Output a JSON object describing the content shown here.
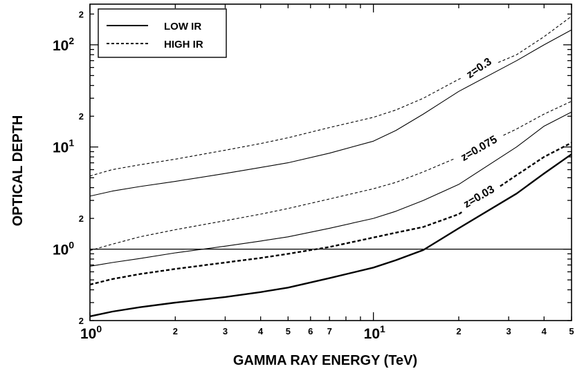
{
  "chart_data": {
    "type": "line",
    "xlabel": "GAMMA RAY ENERGY (TeV)",
    "ylabel": "OPTICAL DEPTH",
    "xscale": "log",
    "yscale": "log",
    "xlim": [
      1,
      50
    ],
    "ylim": [
      0.2,
      250
    ],
    "x_major_ticks": [
      {
        "value": 1,
        "base": "10",
        "exp": "0"
      },
      {
        "value": 10,
        "base": "10",
        "exp": "1"
      }
    ],
    "x_minor_ticks": [
      {
        "value": 2,
        "label": "2"
      },
      {
        "value": 3,
        "label": "3"
      },
      {
        "value": 4,
        "label": "4"
      },
      {
        "value": 5,
        "label": "5"
      },
      {
        "value": 6,
        "label": "6"
      },
      {
        "value": 7,
        "label": "7"
      },
      {
        "value": 20,
        "label": "2"
      },
      {
        "value": 30,
        "label": "3"
      },
      {
        "value": 40,
        "label": "4"
      },
      {
        "value": 50,
        "label": "5"
      }
    ],
    "y_major_ticks": [
      {
        "value": 1,
        "base": "10",
        "exp": "0"
      },
      {
        "value": 10,
        "base": "10",
        "exp": "1"
      },
      {
        "value": 100,
        "base": "10",
        "exp": "2"
      }
    ],
    "y_minor_ticks": [
      {
        "value": 0.2,
        "label": "2"
      },
      {
        "value": 2,
        "label": "2"
      },
      {
        "value": 20,
        "label": "2"
      },
      {
        "value": 200,
        "label": "2"
      }
    ],
    "reference_line": {
      "y": 1
    },
    "legend": {
      "placement": "top-left",
      "entries": [
        {
          "label": "LOW IR",
          "style": "solid"
        },
        {
          "label": "HIGH IR",
          "style": "dashed"
        }
      ]
    },
    "series": [
      {
        "group": "z=0.3",
        "style": "dashed",
        "weight": "thin",
        "x": [
          1,
          1.2,
          1.5,
          2,
          3,
          4,
          5,
          7,
          10,
          12,
          15,
          20,
          32,
          40,
          50
        ],
        "y": [
          5.2,
          6.0,
          6.7,
          7.6,
          9.3,
          10.8,
          12.3,
          15.5,
          19.5,
          23,
          30,
          46,
          80,
          120,
          190
        ]
      },
      {
        "group": "z=0.3",
        "style": "solid",
        "weight": "thin",
        "x": [
          1,
          1.2,
          1.5,
          2,
          3,
          4,
          5,
          7,
          10,
          12,
          15,
          20,
          32,
          40,
          50
        ],
        "y": [
          3.3,
          3.7,
          4.1,
          4.6,
          5.5,
          6.3,
          7.0,
          8.7,
          11.4,
          14.5,
          21,
          35,
          70,
          100,
          140
        ]
      },
      {
        "group": "z=0.075",
        "style": "dashed",
        "weight": "thin",
        "x": [
          1,
          1.2,
          1.5,
          2,
          3,
          4,
          5,
          7,
          10,
          12,
          15,
          20,
          32,
          40,
          50
        ],
        "y": [
          0.97,
          1.12,
          1.32,
          1.55,
          1.9,
          2.2,
          2.5,
          3.1,
          3.9,
          4.5,
          5.7,
          8,
          15,
          21,
          28
        ]
      },
      {
        "group": "z=0.075",
        "style": "solid",
        "weight": "thin",
        "x": [
          1,
          1.2,
          1.5,
          2,
          3,
          4,
          5,
          7,
          10,
          12,
          15,
          20,
          32,
          40,
          50
        ],
        "y": [
          0.68,
          0.74,
          0.81,
          0.92,
          1.07,
          1.2,
          1.32,
          1.6,
          2.0,
          2.35,
          3.0,
          4.3,
          10,
          16,
          22
        ]
      },
      {
        "group": "z=0.03",
        "style": "dashed",
        "weight": "thick",
        "x": [
          1,
          1.2,
          1.5,
          2,
          3,
          4,
          5,
          7,
          10,
          12,
          15,
          20,
          32,
          40,
          50
        ],
        "y": [
          0.45,
          0.51,
          0.57,
          0.64,
          0.74,
          0.82,
          0.9,
          1.05,
          1.3,
          1.45,
          1.65,
          2.2,
          5.3,
          8,
          11
        ]
      },
      {
        "group": "z=0.03",
        "style": "solid",
        "weight": "thick",
        "x": [
          1,
          1.2,
          1.5,
          2,
          3,
          4,
          5,
          7,
          10,
          12,
          15,
          20,
          32,
          40,
          50
        ],
        "y": [
          0.22,
          0.245,
          0.27,
          0.3,
          0.34,
          0.38,
          0.42,
          0.52,
          0.66,
          0.78,
          0.98,
          1.6,
          3.5,
          5.5,
          8.5
        ]
      }
    ],
    "curve_labels": [
      {
        "text": "z=0.3",
        "x": 23.5,
        "y": 60,
        "angle": -34
      },
      {
        "text": "z=0.075",
        "x": 23.5,
        "y": 9.8,
        "angle": -30
      },
      {
        "text": "z=0.03",
        "x": 23.5,
        "y": 3.3,
        "angle": -30
      }
    ]
  }
}
